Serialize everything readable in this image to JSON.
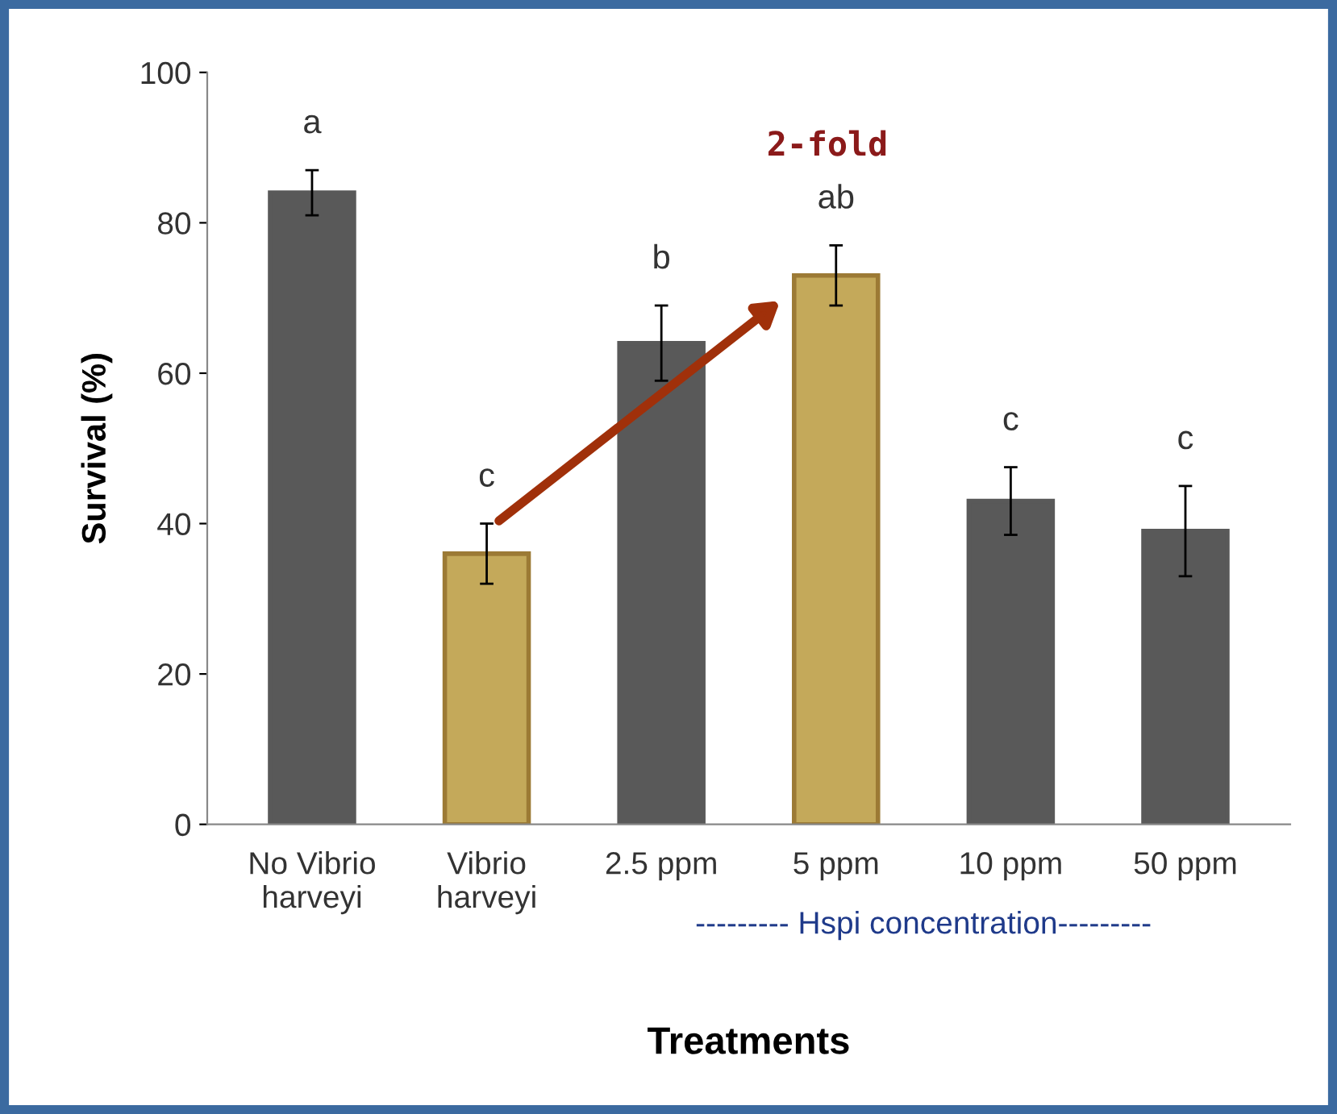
{
  "chart_data": {
    "type": "bar",
    "xlabel": "Treatments",
    "ylabel": "Survival (%)",
    "categories": [
      "No Vibrio\nharveyi",
      "Vibrio\nharveyi",
      "2.5 ppm",
      "5 ppm",
      "10 ppm",
      "50 ppm"
    ],
    "values": [
      84,
      36,
      64,
      73,
      43,
      39
    ],
    "errors": [
      3,
      4,
      5,
      4,
      4.5,
      6
    ],
    "colors": [
      "#595959",
      "#c4a95a",
      "#595959",
      "#c4a95a",
      "#595959",
      "#595959"
    ],
    "ylim": [
      0,
      100
    ],
    "yticks": [
      0,
      20,
      40,
      60,
      80,
      100
    ],
    "grid": false,
    "legend": false,
    "annotations": [
      "a",
      "c",
      "b",
      "ab",
      "c",
      "c",
      "2-fold",
      "--------- Hspi concentration---------"
    ]
  }
}
